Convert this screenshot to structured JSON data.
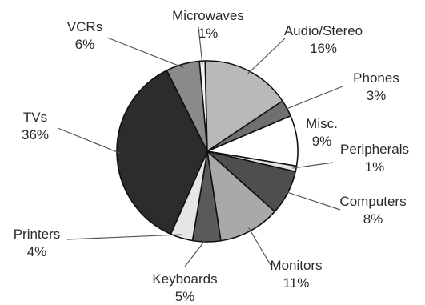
{
  "chart_data": {
    "type": "pie",
    "title": "",
    "start_angle_deg": -95,
    "direction": "clockwise",
    "slices": [
      {
        "label": "Microwaves",
        "value_label": "1%",
        "value": 1,
        "color": "#f4f4f4"
      },
      {
        "label": "Audio/Stereo",
        "value_label": "16%",
        "value": 16,
        "color": "#b9b9b9"
      },
      {
        "label": "Phones",
        "value_label": "3%",
        "value": 3,
        "color": "#6f6f6f"
      },
      {
        "label": "Misc.",
        "value_label": "9%",
        "value": 9,
        "color": "#ffffff"
      },
      {
        "label": "Peripherals",
        "value_label": "1%",
        "value": 1,
        "color": "#e2e2e2"
      },
      {
        "label": "Computers",
        "value_label": "8%",
        "value": 8,
        "color": "#4e4e4e"
      },
      {
        "label": "Monitors",
        "value_label": "11%",
        "value": 11,
        "color": "#a9a9a9"
      },
      {
        "label": "Keyboards",
        "value_label": "5%",
        "value": 5,
        "color": "#5a5a5a"
      },
      {
        "label": "Printers",
        "value_label": "4%",
        "value": 4,
        "color": "#e6e6e6"
      },
      {
        "label": "TVs",
        "value_label": "36%",
        "value": 36,
        "color": "#2c2c2c"
      },
      {
        "label": "VCRs",
        "value_label": "6%",
        "value": 6,
        "color": "#8a8a8a"
      }
    ],
    "slice_outline_color": "#111111",
    "leader_line_color": "#555555",
    "text_color": "#2a2a2a"
  }
}
